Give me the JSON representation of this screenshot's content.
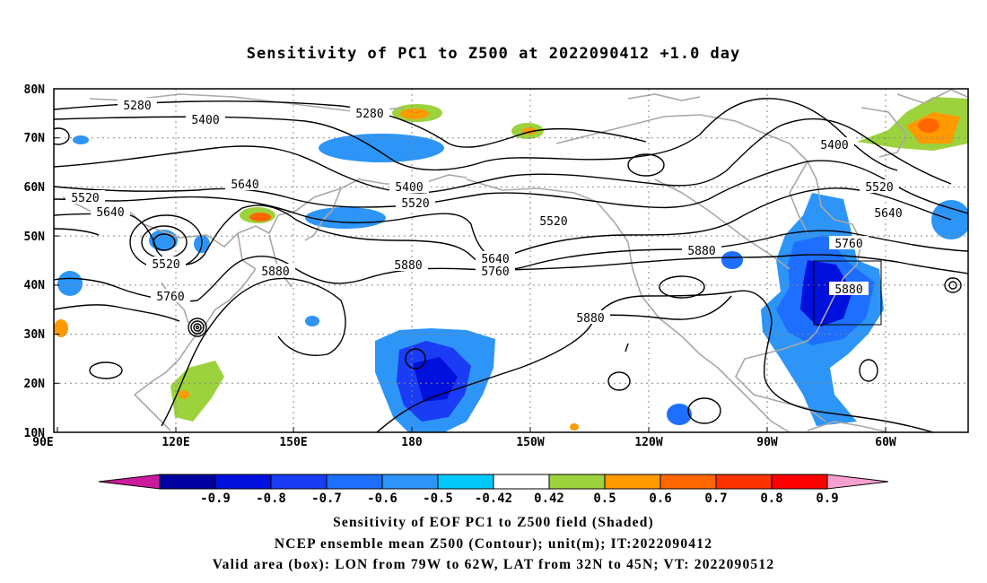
{
  "title": "Sensitivity of PC1 to Z500 at 2022090412 +1.0 day",
  "lat_ticks": [
    "80N",
    "70N",
    "60N",
    "50N",
    "40N",
    "30N",
    "20N",
    "10N"
  ],
  "lon_ticks": [
    "90E",
    "120E",
    "150E",
    "180",
    "150W",
    "120W",
    "90W",
    "60W"
  ],
  "contour_labels": [
    "5280",
    "5400",
    "5280",
    "5400",
    "5520",
    "5520",
    "5640",
    "5520",
    "5400",
    "5520",
    "5640",
    "5640",
    "5520",
    "5520",
    "5640",
    "5760",
    "5880",
    "5880",
    "5640",
    "5760",
    "5880",
    "5760",
    "5880",
    "5880",
    "5880"
  ],
  "colorbar": {
    "ticks": [
      "-0.9",
      "-0.8",
      "-0.7",
      "-0.6",
      "-0.5",
      "-0.42",
      "0.42",
      "0.5",
      "0.6",
      "0.7",
      "0.8",
      "0.9"
    ],
    "colors": [
      "#cc1a9c",
      "#0000a0",
      "#0010dd",
      "#1a3cf5",
      "#1e6fff",
      "#2c95f7",
      "#00c8f8",
      "#ffffff",
      "#9cd23c",
      "#ff9900",
      "#ff6600",
      "#ff3300",
      "#ff0000",
      "#f7a0cf"
    ]
  },
  "captions": [
    "Sensitivity of EOF PC1 to Z500 field (Shaded)",
    "NCEP ensemble mean Z500 (Contour); unit(m); IT:2022090412",
    "Valid area (box): LON from 79W to 62W, LAT from 32N to 45N; VT: 2022090512"
  ]
}
